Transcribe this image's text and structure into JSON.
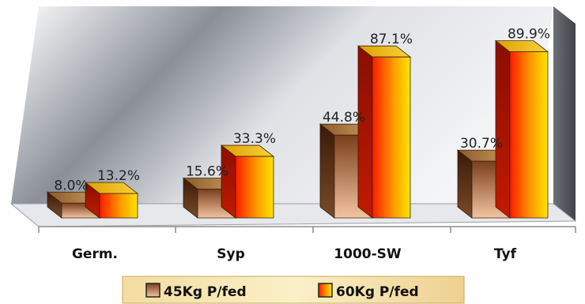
{
  "chart_data": {
    "type": "bar",
    "categories": [
      "Germ.",
      "Syp",
      "1000-SW",
      "Tyf"
    ],
    "series": [
      {
        "name": "45Kg P/fed",
        "values": [
          8.0,
          15.6,
          44.8,
          30.7
        ],
        "labels": [
          "8.0%",
          "15.6%",
          "44.8%",
          "30.7%"
        ],
        "color": "#8B4513"
      },
      {
        "name": "60Kg P/fed",
        "values": [
          13.2,
          33.3,
          87.1,
          89.9
        ],
        "labels": [
          "13.2%",
          "33.3%",
          "87.1%",
          "89.9%"
        ],
        "color": "#FF2A00"
      }
    ],
    "ylim": [
      0,
      100
    ],
    "grid": false,
    "legend": "bottom",
    "title": "",
    "xlabel": "",
    "ylabel": ""
  }
}
